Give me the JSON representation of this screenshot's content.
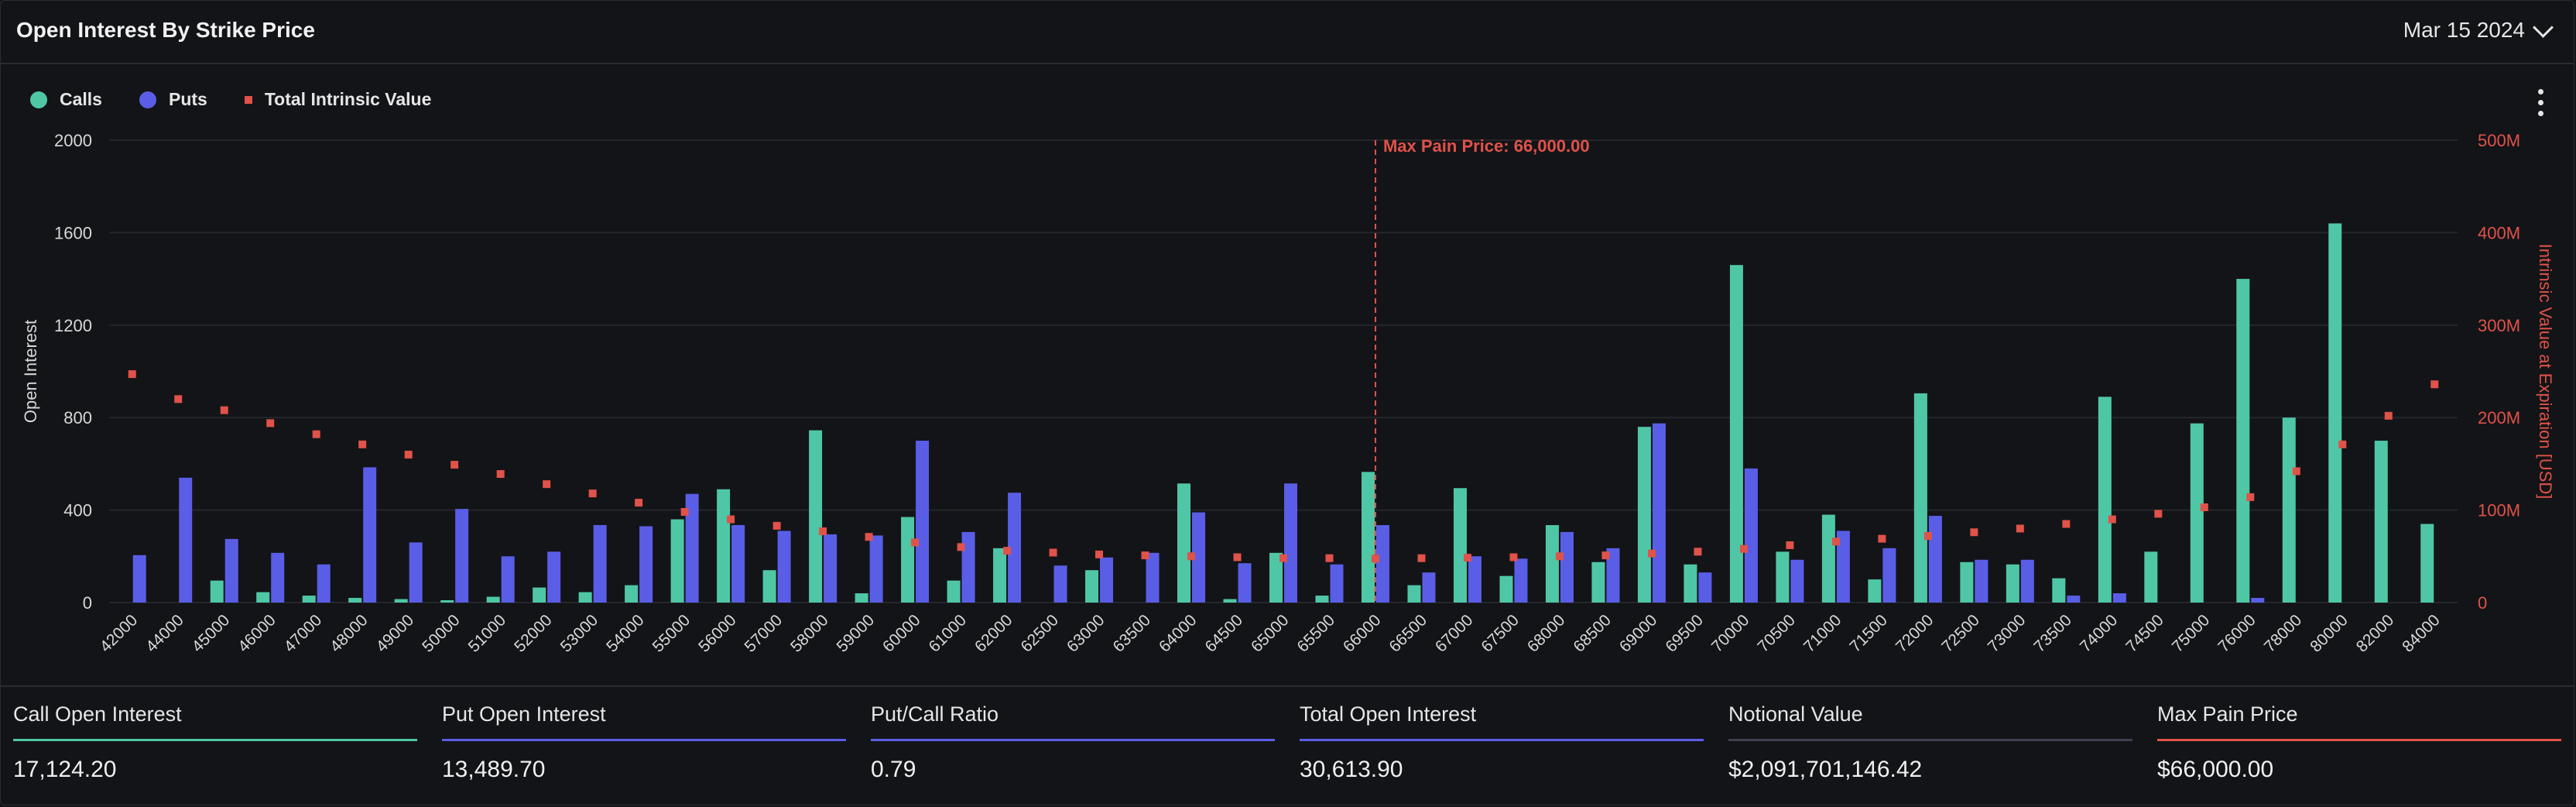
{
  "header": {
    "title": "Open Interest By Strike Price",
    "date": "Mar 15 2024"
  },
  "legend": [
    {
      "label": "Calls",
      "color": "#4fc7a6"
    },
    {
      "label": "Puts",
      "color": "#5a5ee6"
    },
    {
      "label": "Total Intrinsic Value",
      "color": "#e0524a"
    }
  ],
  "stats": [
    {
      "label": "Call Open Interest",
      "value": "17,124.20",
      "color": "#4fc7a6"
    },
    {
      "label": "Put Open Interest",
      "value": "13,489.70",
      "color": "#5a5ee6"
    },
    {
      "label": "Put/Call Ratio",
      "value": "0.79",
      "color": "#5a5ee6"
    },
    {
      "label": "Total Open Interest",
      "value": "30,613.90",
      "color": "#5a5ee6"
    },
    {
      "label": "Notional Value",
      "value": "$2,091,701,146.42",
      "color": "#3e4150"
    },
    {
      "label": "Max Pain Price",
      "value": "$66,000.00",
      "color": "#e0524a"
    }
  ],
  "chart_data": {
    "type": "bar",
    "title": "",
    "xlabel": "",
    "ylabel": "Open Interest",
    "y2label": "Intrinsic Value at Expiration [USD]",
    "ylim": [
      0,
      2000
    ],
    "y2lim": [
      0,
      500000000
    ],
    "y_ticks": [
      "0",
      "400",
      "800",
      "1200",
      "1600",
      "2000"
    ],
    "y2_ticks": [
      "0",
      "100M",
      "200M",
      "300M",
      "400M",
      "500M"
    ],
    "categories": [
      "42000",
      "44000",
      "45000",
      "46000",
      "47000",
      "48000",
      "49000",
      "50000",
      "51000",
      "52000",
      "53000",
      "54000",
      "55000",
      "56000",
      "57000",
      "58000",
      "59000",
      "60000",
      "61000",
      "62000",
      "62500",
      "63000",
      "63500",
      "64000",
      "64500",
      "65000",
      "65500",
      "66000",
      "66500",
      "67000",
      "67500",
      "68000",
      "68500",
      "69000",
      "69500",
      "70000",
      "70500",
      "71000",
      "71500",
      "72000",
      "72500",
      "73000",
      "73500",
      "74000",
      "74500",
      "75000",
      "76000",
      "78000",
      "80000",
      "82000",
      "84000"
    ],
    "series": [
      {
        "name": "Calls",
        "color": "#4fc7a6",
        "values": [
          0,
          0,
          95,
          45,
          30,
          20,
          15,
          10,
          25,
          65,
          45,
          75,
          360,
          490,
          140,
          745,
          40,
          370,
          95,
          235,
          0,
          140,
          0,
          515,
          15,
          215,
          30,
          565,
          75,
          495,
          115,
          335,
          175,
          760,
          165,
          1460,
          220,
          380,
          100,
          905,
          175,
          165,
          105,
          890,
          220,
          775,
          1400,
          800,
          1640,
          700,
          340
        ]
      },
      {
        "name": "Puts",
        "color": "#5a5ee6",
        "values": [
          205,
          540,
          275,
          215,
          165,
          585,
          260,
          405,
          200,
          220,
          335,
          330,
          470,
          335,
          310,
          295,
          290,
          700,
          305,
          475,
          160,
          195,
          215,
          390,
          170,
          515,
          165,
          335,
          130,
          200,
          190,
          305,
          235,
          775,
          130,
          580,
          185,
          310,
          235,
          375,
          185,
          185,
          30,
          40,
          0,
          0,
          20,
          0,
          0,
          0,
          0
        ]
      },
      {
        "name": "Total Intrinsic Value",
        "color": "#e0524a",
        "values": [
          247000000,
          220000000,
          208000000,
          194000000,
          182000000,
          171000000,
          160000000,
          149000000,
          139000000,
          128000000,
          118000000,
          108000000,
          98000000,
          90000000,
          83000000,
          77000000,
          71000000,
          65000000,
          60000000,
          56000000,
          54000000,
          52000000,
          51000000,
          50000000,
          49000000,
          48000000,
          48000000,
          47500000,
          48000000,
          48500000,
          49000000,
          50000000,
          51000000,
          53000000,
          55000000,
          58000000,
          62000000,
          66000000,
          69000000,
          72000000,
          76000000,
          80000000,
          85000000,
          90000000,
          96000000,
          103000000,
          114000000,
          142000000,
          171000000,
          202000000,
          236000000
        ]
      }
    ],
    "annotation": {
      "label": "Max Pain Price: 66,000.00",
      "x": "66000"
    },
    "grid": true
  }
}
